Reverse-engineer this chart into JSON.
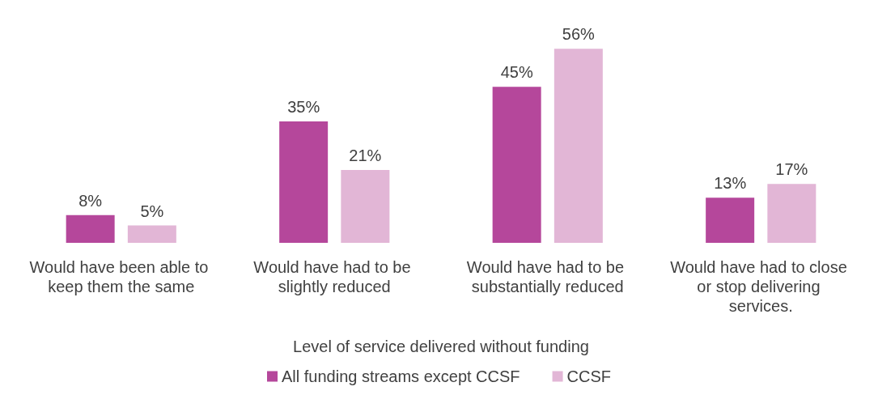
{
  "chart_data": {
    "type": "bar",
    "xlabel": "Level of service delivered without funding",
    "categories": [
      "Would have been able to keep them the same",
      "Would have had to be slightly reduced",
      "Would have had to be substantially reduced",
      "Would have had to close or stop delivering services."
    ],
    "series": [
      {
        "name": "All funding streams except CCSF",
        "color": "#b5479b",
        "values": [
          8,
          35,
          45,
          13
        ],
        "value_labels": [
          "8%",
          "35%",
          "45%",
          "13%"
        ]
      },
      {
        "name": "CCSF",
        "color": "#e2b6d6",
        "values": [
          5,
          21,
          56,
          17
        ],
        "value_labels": [
          "5%",
          "21%",
          "56%",
          "17%"
        ]
      }
    ],
    "legend": "bottom"
  }
}
